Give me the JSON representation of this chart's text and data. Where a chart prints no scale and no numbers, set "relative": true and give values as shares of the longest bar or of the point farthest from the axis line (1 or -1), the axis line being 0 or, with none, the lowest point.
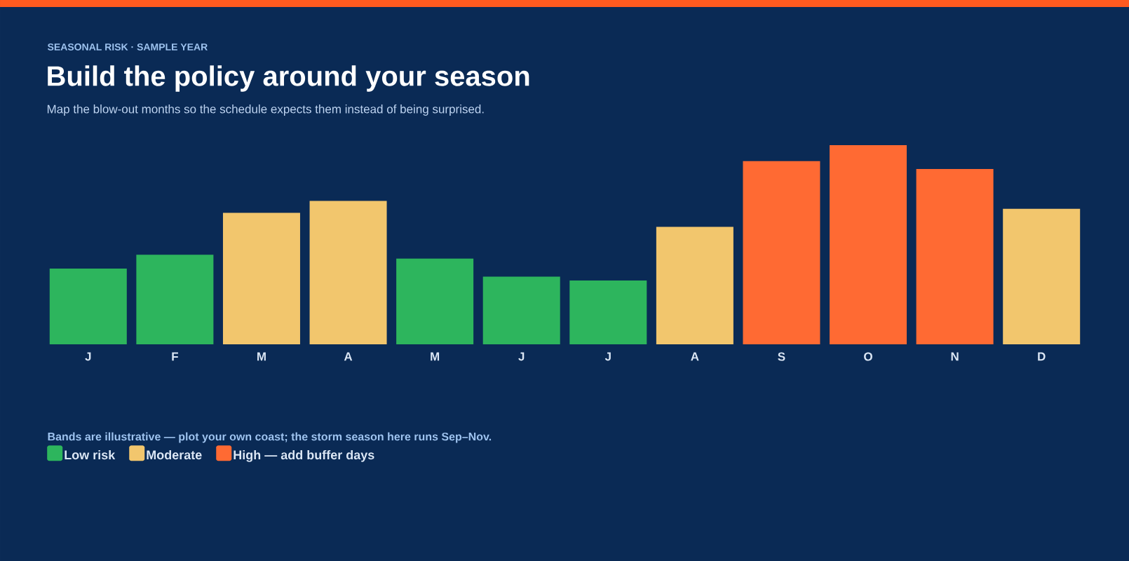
{
  "chart_data": {
    "type": "bar",
    "title": "Build the policy around your season",
    "subtitle": "Map the blow-out months so the schedule expects them instead of being surprised.",
    "annotations": [
      "SEASONAL RISK · SAMPLE YEAR",
      "Bands are illustrative — plot your own coast; the storm season here runs Sep–Nov."
    ],
    "categories": [
      "J",
      "F",
      "M",
      "A",
      "M",
      "J",
      "J",
      "A",
      "S",
      "O",
      "N",
      "D"
    ],
    "series": [
      {
        "name": "Low risk",
        "color": "#2db55d",
        "values": [
          0.38,
          0.45,
          null,
          null,
          0.43,
          0.34,
          0.32,
          null,
          null,
          null,
          null,
          null
        ]
      },
      {
        "name": "Moderate",
        "color": "#f2c66d",
        "values": [
          null,
          null,
          0.66,
          0.72,
          null,
          null,
          null,
          0.59,
          null,
          null,
          null,
          0.68
        ]
      },
      {
        "name": "High — add buffer days",
        "color": "#ff6a33",
        "values": [
          null,
          null,
          null,
          null,
          null,
          null,
          null,
          null,
          0.92,
          1,
          0.88,
          null
        ]
      }
    ],
    "relative": true,
    "legend": "bottom left"
  }
}
